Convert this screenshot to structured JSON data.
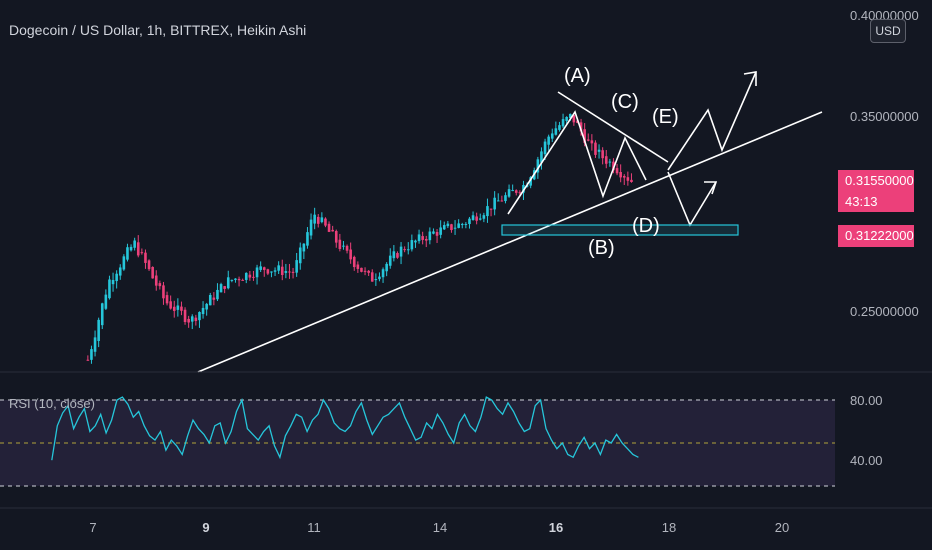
{
  "header": {
    "title": "Dogecoin / US Dollar, 1h, BITTREX, Heikin Ashi",
    "currency_button": "USD"
  },
  "price_axis": {
    "labels": [
      "0.40000000",
      "0.35000000",
      "0.25000000"
    ]
  },
  "price_tags": {
    "last_price": "0.31550000",
    "countdown": "43:13",
    "level": "0.31222000",
    "color": "#ec407a"
  },
  "rsi": {
    "label": "RSI (10, close)",
    "axis_labels": [
      "80.00",
      "40.00"
    ]
  },
  "time_axis": {
    "labels": [
      "7",
      "9",
      "11",
      "14",
      "16",
      "18",
      "20"
    ]
  },
  "annotations": {
    "wave_labels": [
      "(A)",
      "(B)",
      "(C)",
      "(D)",
      "(E)"
    ]
  },
  "colors": {
    "background": "#131722",
    "bull_candle": "#26c6da",
    "bear_candle": "#ec407a",
    "rsi_line": "#26c6da",
    "rsi_band": "#2a2540",
    "support_box": "#26c6da",
    "drawings": "#ffffff"
  },
  "chart_data": [
    {
      "type": "candlestick",
      "title": "Dogecoin / US Dollar, 1h, BITTREX, Heikin Ashi",
      "x_ticks": [
        "7",
        "9",
        "11",
        "14",
        "16",
        "18",
        "20"
      ],
      "y_ticks": [
        0.25,
        0.35,
        0.4
      ],
      "ylim": [
        0.2,
        0.41
      ],
      "grid": false,
      "series": [
        {
          "approx_close_path": [
            [
              6.9,
              0.225
            ],
            [
              7.3,
              0.265
            ],
            [
              7.8,
              0.285
            ],
            [
              8.4,
              0.255
            ],
            [
              8.9,
              0.245
            ],
            [
              9.6,
              0.265
            ],
            [
              10.3,
              0.272
            ],
            [
              10.9,
              0.27
            ],
            [
              11.3,
              0.3
            ],
            [
              11.9,
              0.28
            ],
            [
              12.4,
              0.266
            ],
            [
              13.0,
              0.282
            ],
            [
              13.6,
              0.29
            ],
            [
              14.2,
              0.295
            ],
            [
              14.8,
              0.305
            ],
            [
              15.4,
              0.315
            ],
            [
              15.9,
              0.342
            ],
            [
              16.3,
              0.35
            ],
            [
              16.7,
              0.333
            ],
            [
              17.1,
              0.325
            ],
            [
              17.5,
              0.316
            ]
          ]
        }
      ]
    },
    {
      "type": "line",
      "title": "RSI (10, close)",
      "y_ticks": [
        40,
        80
      ],
      "ylim": [
        20,
        100
      ],
      "x_range": [
        6.2,
        17.6
      ],
      "series": [
        {
          "name": "RSI (10, close)",
          "values": [
            38,
            62,
            71,
            76,
            60,
            68,
            74,
            58,
            62,
            70,
            57,
            66,
            80,
            82,
            77,
            68,
            72,
            62,
            55,
            52,
            58,
            45,
            52,
            48,
            42,
            55,
            66,
            60,
            56,
            50,
            62,
            64,
            50,
            58,
            72,
            80,
            60,
            56,
            52,
            58,
            62,
            48,
            40,
            55,
            62,
            70,
            68,
            58,
            66,
            70,
            80,
            74,
            64,
            60,
            58,
            62,
            72,
            78,
            66,
            56,
            62,
            68,
            70,
            74,
            78,
            68,
            60,
            52,
            54,
            64,
            60,
            70,
            64,
            56,
            50,
            64,
            70,
            62,
            58,
            68,
            82,
            80,
            74,
            70,
            78,
            72,
            64,
            58,
            60,
            76,
            80,
            60,
            52,
            46,
            50,
            42,
            40,
            48,
            54,
            46,
            50,
            42,
            52,
            50,
            56,
            50,
            46,
            42,
            40
          ]
        }
      ]
    }
  ]
}
